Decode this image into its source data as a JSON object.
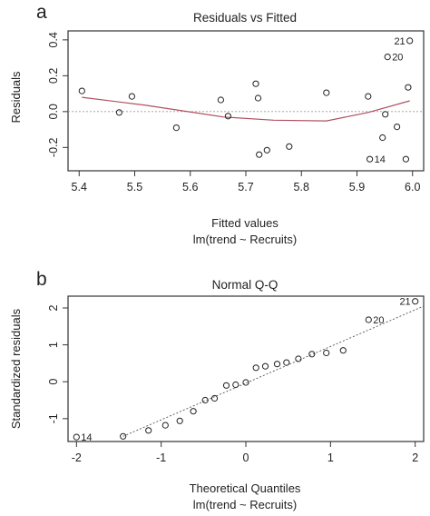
{
  "chart_data": [
    {
      "panel_letter": "a",
      "type": "scatter",
      "title": "Residuals vs Fitted",
      "xlabel": "Fitted values",
      "subtitle": "lm(trend ~ Recruits)",
      "ylabel": "Residuals",
      "xlim": [
        5.38,
        6.02
      ],
      "ylim": [
        -0.33,
        0.45
      ],
      "xticks": [
        "5.4",
        "5.5",
        "5.6",
        "5.7",
        "5.8",
        "5.9",
        "6.0"
      ],
      "xtick_values": [
        5.4,
        5.5,
        5.6,
        5.7,
        5.8,
        5.9,
        6.0
      ],
      "yticks": [
        "-0.2",
        "0.0",
        "0.2",
        "0.4"
      ],
      "ytick_values": [
        -0.2,
        0.0,
        0.2,
        0.4
      ],
      "reference_y": 0,
      "smooth_color": "#b05060",
      "points": [
        {
          "x": 5.405,
          "y": 0.115
        },
        {
          "x": 5.472,
          "y": -0.005
        },
        {
          "x": 5.495,
          "y": 0.085
        },
        {
          "x": 5.575,
          "y": -0.09
        },
        {
          "x": 5.655,
          "y": 0.065
        },
        {
          "x": 5.668,
          "y": -0.025
        },
        {
          "x": 5.718,
          "y": 0.155
        },
        {
          "x": 5.722,
          "y": 0.075
        },
        {
          "x": 5.724,
          "y": -0.24
        },
        {
          "x": 5.738,
          "y": -0.215
        },
        {
          "x": 5.778,
          "y": -0.195
        },
        {
          "x": 5.845,
          "y": 0.105
        },
        {
          "x": 5.92,
          "y": 0.085
        },
        {
          "x": 5.923,
          "y": -0.265,
          "label": "14"
        },
        {
          "x": 5.946,
          "y": -0.145
        },
        {
          "x": 5.951,
          "y": -0.015
        },
        {
          "x": 5.955,
          "y": 0.305,
          "label": "20"
        },
        {
          "x": 5.972,
          "y": -0.085
        },
        {
          "x": 5.988,
          "y": -0.265
        },
        {
          "x": 5.992,
          "y": 0.135
        },
        {
          "x": 5.995,
          "y": 0.395,
          "label": "21"
        }
      ],
      "smooth": [
        {
          "x": 5.405,
          "y": 0.08
        },
        {
          "x": 5.52,
          "y": 0.035
        },
        {
          "x": 5.66,
          "y": -0.03
        },
        {
          "x": 5.75,
          "y": -0.048
        },
        {
          "x": 5.845,
          "y": -0.052
        },
        {
          "x": 5.92,
          "y": -0.005
        },
        {
          "x": 5.995,
          "y": 0.06
        }
      ]
    },
    {
      "panel_letter": "b",
      "type": "scatter",
      "title": "Normal Q-Q",
      "xlabel": "Theoretical Quantiles",
      "subtitle": "lm(trend ~ Recruits)",
      "ylabel": "Standardized residuals",
      "xlim": [
        -2.1,
        2.1
      ],
      "ylim": [
        -1.62,
        2.32
      ],
      "xticks": [
        "-2",
        "-1",
        "0",
        "1",
        "2"
      ],
      "xtick_values": [
        -2,
        -1,
        0,
        1,
        2
      ],
      "yticks": [
        "-1",
        "0",
        "1",
        "2"
      ],
      "ytick_values": [
        -1,
        0,
        1,
        2
      ],
      "qq_line": {
        "x1": -1.45,
        "y1": -1.48,
        "x2": 2.1,
        "y2": 2.05
      },
      "points": [
        {
          "x": -2.0,
          "y": -1.5,
          "label": "14"
        },
        {
          "x": -1.45,
          "y": -1.48
        },
        {
          "x": -1.15,
          "y": -1.32
        },
        {
          "x": -0.95,
          "y": -1.18
        },
        {
          "x": -0.78,
          "y": -1.06
        },
        {
          "x": -0.62,
          "y": -0.8
        },
        {
          "x": -0.48,
          "y": -0.5
        },
        {
          "x": -0.37,
          "y": -0.45
        },
        {
          "x": -0.23,
          "y": -0.1
        },
        {
          "x": -0.12,
          "y": -0.08
        },
        {
          "x": 0.0,
          "y": -0.02
        },
        {
          "x": 0.12,
          "y": 0.38
        },
        {
          "x": 0.23,
          "y": 0.42
        },
        {
          "x": 0.37,
          "y": 0.48
        },
        {
          "x": 0.48,
          "y": 0.52
        },
        {
          "x": 0.62,
          "y": 0.62
        },
        {
          "x": 0.78,
          "y": 0.75
        },
        {
          "x": 0.95,
          "y": 0.78
        },
        {
          "x": 1.15,
          "y": 0.85
        },
        {
          "x": 1.45,
          "y": 1.68,
          "label": "20"
        },
        {
          "x": 2.0,
          "y": 2.18,
          "label": "21"
        }
      ]
    }
  ]
}
